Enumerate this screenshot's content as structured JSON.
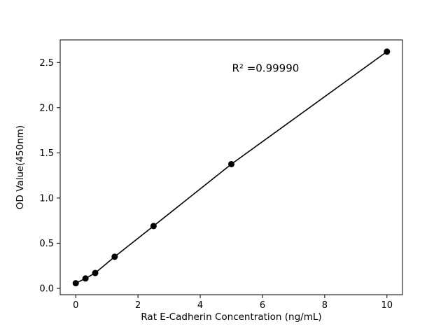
{
  "chart_data": {
    "type": "scatter",
    "title": "",
    "xlabel": "Rat  E-Cadherin Concentration (ng/mL)",
    "ylabel": "OD Value(450nm)",
    "annotation": "R² =0.99990",
    "x": [
      0,
      0.3125,
      0.625,
      1.25,
      2.5,
      5,
      10
    ],
    "y": [
      0.057,
      0.11,
      0.17,
      0.35,
      0.69,
      1.375,
      2.62
    ],
    "line": true,
    "grid": false,
    "legend": null,
    "marker_color": "#000000",
    "line_color": "#000000",
    "background_color": "#ffffff",
    "xlim": [
      -0.5,
      10.5
    ],
    "ylim": [
      -0.07,
      2.75
    ],
    "x_ticks": {
      "values": [
        0,
        2,
        4,
        6,
        8,
        10
      ],
      "labels": [
        "0",
        "2",
        "4",
        "6",
        "8",
        "10"
      ]
    },
    "y_ticks": {
      "values": [
        0,
        0.5,
        1.0,
        1.5,
        2.0,
        2.5
      ],
      "labels": [
        "0.0",
        "0.5",
        "1.0",
        "1.5",
        "2.0",
        "2.5"
      ]
    },
    "annotation_pos": {
      "fx": 0.6,
      "fy": 0.125
    }
  }
}
